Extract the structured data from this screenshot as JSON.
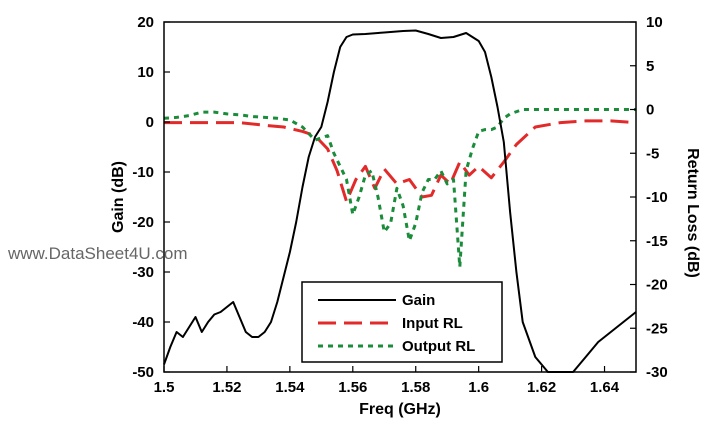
{
  "watermark": "www.DataSheet4U.com",
  "chart_data": {
    "type": "line",
    "xlabel": "Freq (GHz)",
    "ylabel": "Gain (dB)",
    "y2label": "Return Loss (dB)",
    "xlim": [
      1.5,
      1.65
    ],
    "ylim": [
      -50,
      20
    ],
    "y2lim": [
      -30,
      10
    ],
    "x_ticks": [
      "1.5",
      "1.52",
      "1.54",
      "1.56",
      "1.58",
      "1.6",
      "1.62",
      "1.64"
    ],
    "y_ticks": [
      "-50",
      "-40",
      "-30",
      "-20",
      "-10",
      "0",
      "10",
      "20"
    ],
    "y2_ticks": [
      "-30",
      "-25",
      "-20",
      "-15",
      "-10",
      "-5",
      "0",
      "5",
      "10"
    ],
    "grid": false,
    "legend_position": "bottom-center",
    "series": [
      {
        "name": "Gain",
        "axis": "left",
        "color": "#000000",
        "style": "solid",
        "x": [
          1.5,
          1.502,
          1.504,
          1.506,
          1.508,
          1.51,
          1.512,
          1.514,
          1.516,
          1.518,
          1.52,
          1.522,
          1.524,
          1.526,
          1.528,
          1.53,
          1.532,
          1.534,
          1.536,
          1.538,
          1.54,
          1.542,
          1.544,
          1.546,
          1.548,
          1.55,
          1.552,
          1.554,
          1.556,
          1.558,
          1.56,
          1.564,
          1.568,
          1.572,
          1.576,
          1.58,
          1.584,
          1.588,
          1.592,
          1.596,
          1.6,
          1.602,
          1.604,
          1.606,
          1.608,
          1.61,
          1.612,
          1.614,
          1.618,
          1.622,
          1.626,
          1.628,
          1.63,
          1.634,
          1.638,
          1.642,
          1.646,
          1.65
        ],
        "values": [
          -48.5,
          -45,
          -42,
          -43,
          -41,
          -39,
          -42,
          -40,
          -38.5,
          -38,
          -37,
          -36,
          -39,
          -42,
          -43,
          -43,
          -42,
          -40,
          -36,
          -31,
          -26,
          -20,
          -13,
          -7,
          -3,
          -1,
          4,
          10,
          15,
          17,
          17.5,
          17.6,
          17.8,
          18,
          18.2,
          18.3,
          17.6,
          16.8,
          17,
          17.8,
          16.2,
          14,
          9,
          3,
          -4,
          -18,
          -30,
          -40,
          -47,
          -50,
          -52,
          -53,
          -51.5,
          -47,
          -44,
          -42,
          -40,
          -38
        ]
      },
      {
        "name": "Input RL",
        "axis": "right",
        "color": "#e32a2a",
        "style": "long-dash",
        "x": [
          1.5,
          1.508,
          1.516,
          1.524,
          1.532,
          1.538,
          1.544,
          1.548,
          1.552,
          1.555,
          1.558,
          1.561,
          1.564,
          1.567,
          1.57,
          1.574,
          1.578,
          1.582,
          1.585,
          1.588,
          1.591,
          1.594,
          1.597,
          1.6,
          1.604,
          1.608,
          1.612,
          1.618,
          1.626,
          1.634,
          1.642,
          1.65
        ],
        "values": [
          -1.5,
          -1.5,
          -1.5,
          -1.5,
          -1.8,
          -2,
          -2.5,
          -3,
          -4.5,
          -7,
          -10.5,
          -8,
          -6.5,
          -9,
          -6.8,
          -8.5,
          -8,
          -10,
          -9.8,
          -7.5,
          -8.5,
          -6,
          -7.5,
          -6.5,
          -7.8,
          -6,
          -4,
          -2,
          -1.5,
          -1.3,
          -1.3,
          -1.5
        ]
      },
      {
        "name": "Output RL",
        "axis": "right",
        "color": "#1a8c3a",
        "style": "short-dash",
        "x": [
          1.5,
          1.504,
          1.508,
          1.512,
          1.516,
          1.52,
          1.524,
          1.528,
          1.532,
          1.536,
          1.54,
          1.544,
          1.548,
          1.552,
          1.554,
          1.556,
          1.558,
          1.56,
          1.562,
          1.564,
          1.566,
          1.568,
          1.57,
          1.572,
          1.574,
          1.576,
          1.578,
          1.58,
          1.582,
          1.584,
          1.586,
          1.588,
          1.59,
          1.592,
          1.594,
          1.596,
          1.598,
          1.6,
          1.602,
          1.604,
          1.606,
          1.608,
          1.61,
          1.614,
          1.62,
          1.63,
          1.64,
          1.65
        ],
        "values": [
          -1,
          -0.9,
          -0.7,
          -0.3,
          -0.3,
          -0.5,
          -0.6,
          -0.8,
          -0.9,
          -1,
          -1.2,
          -2,
          -3.5,
          -3,
          -5,
          -6.5,
          -8,
          -12,
          -10,
          -7.5,
          -7,
          -10,
          -14,
          -13,
          -9,
          -11,
          -15,
          -13,
          -9.5,
          -8,
          -8,
          -7,
          -8.5,
          -8,
          -18,
          -7,
          -4.5,
          -2.5,
          -2.3,
          -2.3,
          -2,
          -1,
          -0.5,
          0,
          0,
          0,
          0,
          0
        ]
      }
    ]
  }
}
